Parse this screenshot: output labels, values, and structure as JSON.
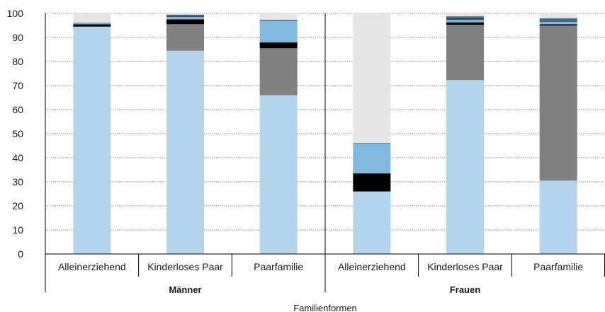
{
  "chart_data": {
    "type": "bar",
    "stacked": true,
    "xlabel": "Familienformen",
    "ylabel": "",
    "ylim": [
      0,
      100
    ],
    "yticks": [
      "0",
      "10",
      "20",
      "30",
      "40",
      "50",
      "60",
      "70",
      "80",
      "90",
      "100"
    ],
    "grid": "horizontal dotted",
    "legend": "none",
    "groups": [
      {
        "label": "Männer",
        "categories": [
          "Alleinerziehend",
          "Kinderloses Paar",
          "Paarfamilie"
        ]
      },
      {
        "label": "Frauen",
        "categories": [
          "Alleinerziehend",
          "Kinderloses Paar",
          "Paarfamilie"
        ]
      }
    ],
    "categories": [
      "Alleinerziehend",
      "Kinderloses Paar",
      "Paarfamilie",
      "Alleinerziehend",
      "Kinderloses Paar",
      "Paarfamilie"
    ],
    "series": [
      {
        "color": "#b3d4ea",
        "values": [
          94.5,
          84.5,
          66,
          26,
          72.3,
          30.5
        ]
      },
      {
        "color": "#808080",
        "values": [
          0,
          11,
          19.5,
          0,
          23,
          64.5
        ]
      },
      {
        "color": "#000000",
        "values": [
          1,
          2,
          2.5,
          7.5,
          1,
          0.5
        ]
      },
      {
        "color": "#7fb9e0",
        "values": [
          0.5,
          1,
          9,
          12.5,
          1,
          1
        ]
      },
      {
        "color": "#4a4a4a",
        "values": [
          0,
          0.5,
          0.2,
          0,
          1,
          0.5
        ]
      },
      {
        "color": "#2e6fa0",
        "values": [
          0.2,
          0.5,
          0.2,
          0.2,
          0.5,
          1
        ]
      },
      {
        "color": "#e5e5e5",
        "values": [
          3.8,
          0.5,
          2.6,
          53.8,
          1.2,
          2
        ]
      }
    ]
  }
}
